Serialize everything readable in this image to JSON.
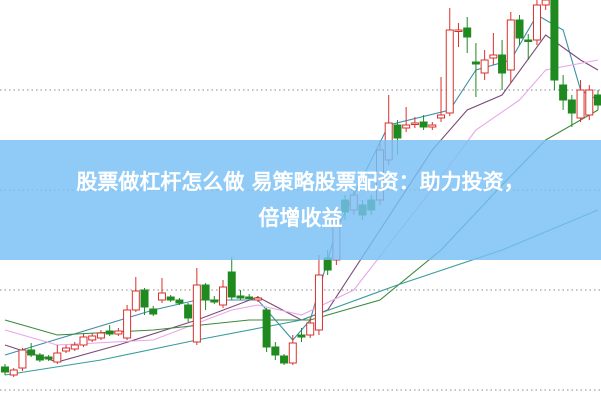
{
  "title": {
    "line1": "股票做杠杆怎么做 易策略股票配资：助力投资，",
    "line2": "倍增收益"
  },
  "chart_data": {
    "type": "candlestick",
    "ylim": [
      0,
      405
    ],
    "gridlines": [
      10,
      110,
      210,
      310
    ],
    "grid": "horizontal dotted",
    "colors": {
      "up": "#d9302c",
      "down": "#1f8a1f",
      "grid": "#888888",
      "overlay": "#78c0f5"
    },
    "candles_ochl": [
      [
        33,
        28,
        36,
        25
      ],
      [
        25,
        30,
        32,
        23
      ],
      [
        32,
        50,
        52,
        29
      ],
      [
        50,
        45,
        57,
        43
      ],
      [
        45,
        40,
        47,
        38
      ],
      [
        43,
        41,
        45,
        39
      ],
      [
        38,
        47,
        55,
        36
      ],
      [
        49,
        52,
        55,
        47
      ],
      [
        51,
        55,
        58,
        49
      ],
      [
        55,
        63,
        66,
        53
      ],
      [
        60,
        64,
        67,
        58
      ],
      [
        62,
        67,
        70,
        60
      ],
      [
        69,
        66,
        75,
        64
      ],
      [
        66,
        69,
        72,
        64
      ],
      [
        62,
        90,
        95,
        60
      ],
      [
        90,
        109,
        123,
        88
      ],
      [
        110,
        93,
        112,
        85
      ],
      [
        91,
        86,
        94,
        84
      ],
      [
        100,
        107,
        122,
        97
      ],
      [
        103,
        100,
        105,
        98
      ],
      [
        100,
        97,
        102,
        95
      ],
      [
        95,
        82,
        97,
        78
      ],
      [
        58,
        115,
        132,
        55
      ],
      [
        115,
        100,
        117,
        90
      ],
      [
        100,
        98,
        104,
        96
      ],
      [
        95,
        113,
        120,
        92
      ],
      [
        128,
        103,
        143,
        100
      ],
      [
        104,
        102,
        110,
        100
      ],
      [
        103,
        102,
        106,
        100
      ],
      [
        100,
        102,
        104,
        98
      ],
      [
        90,
        53,
        92,
        48
      ],
      [
        53,
        45,
        58,
        40
      ],
      [
        44,
        37,
        46,
        35
      ],
      [
        37,
        57,
        65,
        35
      ],
      [
        65,
        63,
        72,
        58
      ],
      [
        65,
        77,
        82,
        62
      ],
      [
        70,
        125,
        145,
        65
      ],
      [
        142,
        130,
        150,
        125
      ],
      [
        140,
        180,
        190,
        135
      ],
      [
        200,
        188,
        205,
        180
      ],
      [
        190,
        205,
        212,
        185
      ],
      [
        195,
        185,
        200,
        180
      ],
      [
        200,
        190,
        205,
        185
      ],
      [
        200,
        250,
        260,
        195
      ],
      [
        240,
        277,
        305,
        235
      ],
      [
        275,
        262,
        280,
        245
      ],
      [
        272,
        275,
        293,
        268
      ],
      [
        276,
        277,
        283,
        272
      ],
      [
        278,
        273,
        285,
        270
      ],
      [
        273,
        275,
        278,
        270
      ],
      [
        282,
        285,
        323,
        278
      ],
      [
        287,
        370,
        392,
        284
      ],
      [
        369,
        370,
        377,
        353
      ],
      [
        372,
        363,
        383,
        347
      ],
      [
        338,
        336,
        357,
        303
      ],
      [
        327,
        340,
        350,
        320
      ],
      [
        342,
        345,
        367,
        335
      ],
      [
        345,
        327,
        360,
        310
      ],
      [
        330,
        380,
        388,
        317
      ],
      [
        380,
        362,
        385,
        355
      ],
      [
        360,
        359,
        366,
        340
      ],
      [
        360,
        395,
        400,
        355
      ],
      [
        395,
        400,
        402,
        390
      ],
      [
        400,
        320,
        402,
        310
      ],
      [
        315,
        300,
        325,
        290
      ],
      [
        300,
        287,
        305,
        273
      ],
      [
        282,
        310,
        320,
        278
      ],
      [
        285,
        310,
        315,
        280
      ],
      [
        305,
        295,
        310,
        290
      ]
    ],
    "moving_averages": [
      {
        "color": "#3a8fa8",
        "points": [
          [
            0,
            45
          ],
          [
            17,
            90
          ],
          [
            22,
            100
          ],
          [
            29,
            100
          ],
          [
            33,
            60
          ],
          [
            35,
            80
          ],
          [
            38,
            170
          ],
          [
            44,
            275
          ],
          [
            51,
            290
          ],
          [
            54,
            330
          ],
          [
            58,
            340
          ],
          [
            61,
            385
          ],
          [
            64,
            370
          ],
          [
            66,
            310
          ],
          [
            68,
            300
          ]
        ]
      },
      {
        "color": "#7b4b78",
        "points": [
          [
            0,
            55
          ],
          [
            6,
            38
          ],
          [
            13,
            55
          ],
          [
            22,
            80
          ],
          [
            29,
            103
          ],
          [
            34,
            80
          ],
          [
            37,
            90
          ],
          [
            43,
            170
          ],
          [
            49,
            250
          ],
          [
            53,
            290
          ],
          [
            57,
            305
          ],
          [
            62,
            365
          ],
          [
            66,
            340
          ],
          [
            68,
            330
          ]
        ]
      },
      {
        "color": "#e8a6e8",
        "points": [
          [
            0,
            70
          ],
          [
            6,
            55
          ],
          [
            17,
            60
          ],
          [
            26,
            90
          ],
          [
            29,
            95
          ],
          [
            34,
            85
          ],
          [
            40,
            110
          ],
          [
            48,
            200
          ],
          [
            54,
            270
          ],
          [
            59,
            300
          ],
          [
            62,
            330
          ],
          [
            68,
            340
          ]
        ]
      },
      {
        "color": "#3b8a3b",
        "points": [
          [
            0,
            80
          ],
          [
            6,
            65
          ],
          [
            17,
            70
          ],
          [
            28,
            80
          ],
          [
            35,
            80
          ],
          [
            43,
            100
          ],
          [
            50,
            150
          ],
          [
            57,
            215
          ],
          [
            62,
            260
          ],
          [
            66,
            280
          ],
          [
            68,
            290
          ]
        ]
      },
      {
        "color": "#3a9c9c",
        "points": [
          [
            0,
            25
          ],
          [
            11,
            40
          ],
          [
            22,
            60
          ],
          [
            34,
            80
          ],
          [
            45,
            115
          ],
          [
            57,
            150
          ],
          [
            68,
            190
          ]
        ]
      }
    ]
  }
}
